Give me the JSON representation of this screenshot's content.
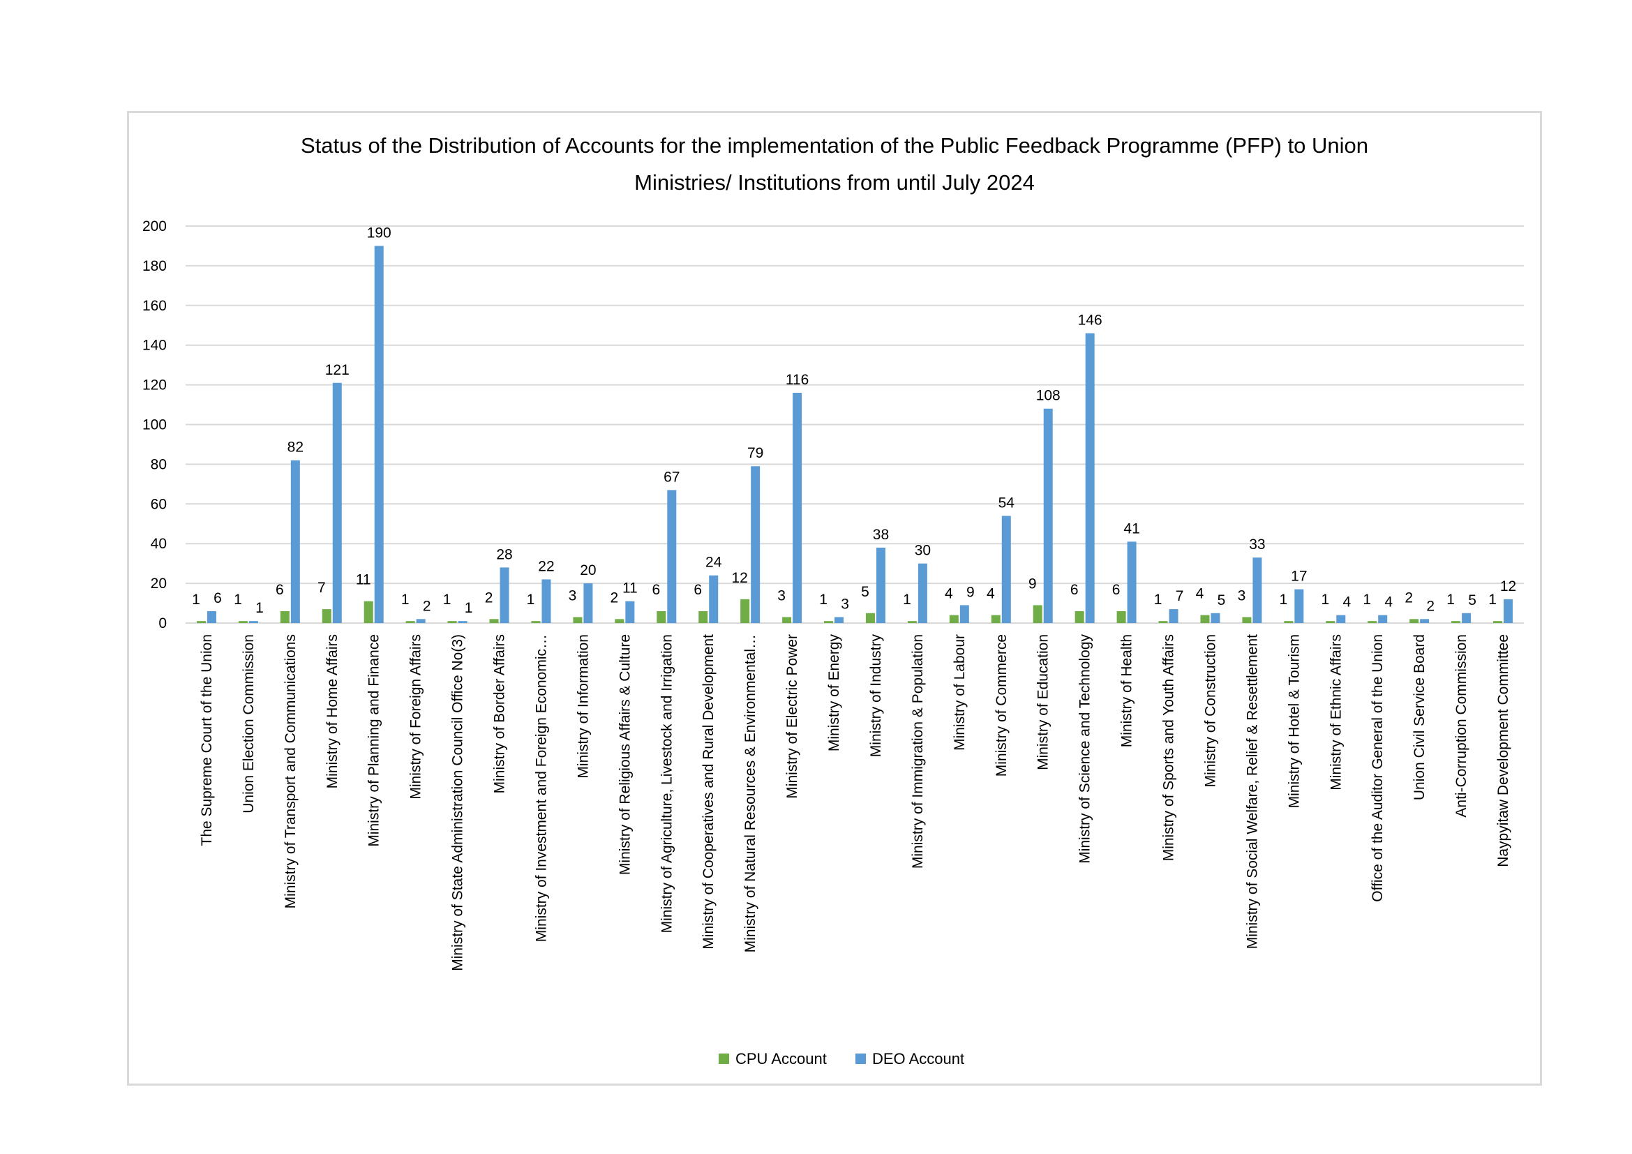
{
  "chart_data": {
    "type": "bar",
    "title_lines": [
      "Status of the Distribution of Accounts for the implementation of the Public Feedback Programme (PFP) to Union",
      "Ministries/ Institutions from until  July 2024"
    ],
    "ylim": [
      0,
      200
    ],
    "yticks": [
      0,
      20,
      40,
      60,
      80,
      100,
      120,
      140,
      160,
      180,
      200
    ],
    "grid": true,
    "legend_position": "bottom",
    "categories": [
      "The Supreme Court of the Union",
      "Union Election Commission",
      "Ministry of Transport and Communications",
      "Ministry of Home Affairs",
      "Ministry of Planning and Finance",
      "Ministry of Foreign Affairs",
      "Ministry of State Administration Council Office No(3)",
      "Ministry of Border Affairs",
      "Ministry of Investment and Foreign Economic…",
      "Ministry of Information",
      "Ministry of Religious Affairs & Culture",
      "Ministry of Agriculture, Livestock and Irrigation",
      "Ministry of Cooperatives and Rural Development",
      "Ministry of Natural Resources & Environmental…",
      "Ministry of Electric Power",
      "Ministry of Energy",
      "Ministry of Industry",
      "Ministry of Immigration & Population",
      "Ministry of Labour",
      "Ministry of Commerce",
      "Ministry of Education",
      "Ministry of Science and Technology",
      "Ministry of Health",
      "Ministry of Sports and Youth Affairs",
      "Ministry of Construction",
      "Ministry of Social Welfare, Relief & Resettlement",
      "Ministry of Hotel & Tourism",
      "Ministry of Ethnic Affairs",
      "Office of the Auditor General of the Union",
      "Union Civil Service Board",
      "Anti-Corruption Commission",
      "Naypyitaw Development Committee"
    ],
    "series": [
      {
        "name": "CPU Account",
        "color": "#70ad47",
        "values": [
          1,
          1,
          6,
          7,
          11,
          1,
          1,
          2,
          1,
          3,
          2,
          6,
          6,
          12,
          3,
          1,
          5,
          1,
          4,
          4,
          9,
          6,
          6,
          1,
          4,
          3,
          1,
          1,
          1,
          2,
          1,
          1
        ]
      },
      {
        "name": "DEO Account",
        "color": "#5b9bd5",
        "values": [
          6,
          1,
          82,
          121,
          190,
          2,
          1,
          28,
          22,
          20,
          11,
          67,
          24,
          79,
          116,
          3,
          38,
          30,
          9,
          54,
          108,
          146,
          41,
          7,
          5,
          33,
          17,
          4,
          4,
          2,
          5,
          12
        ]
      }
    ]
  }
}
